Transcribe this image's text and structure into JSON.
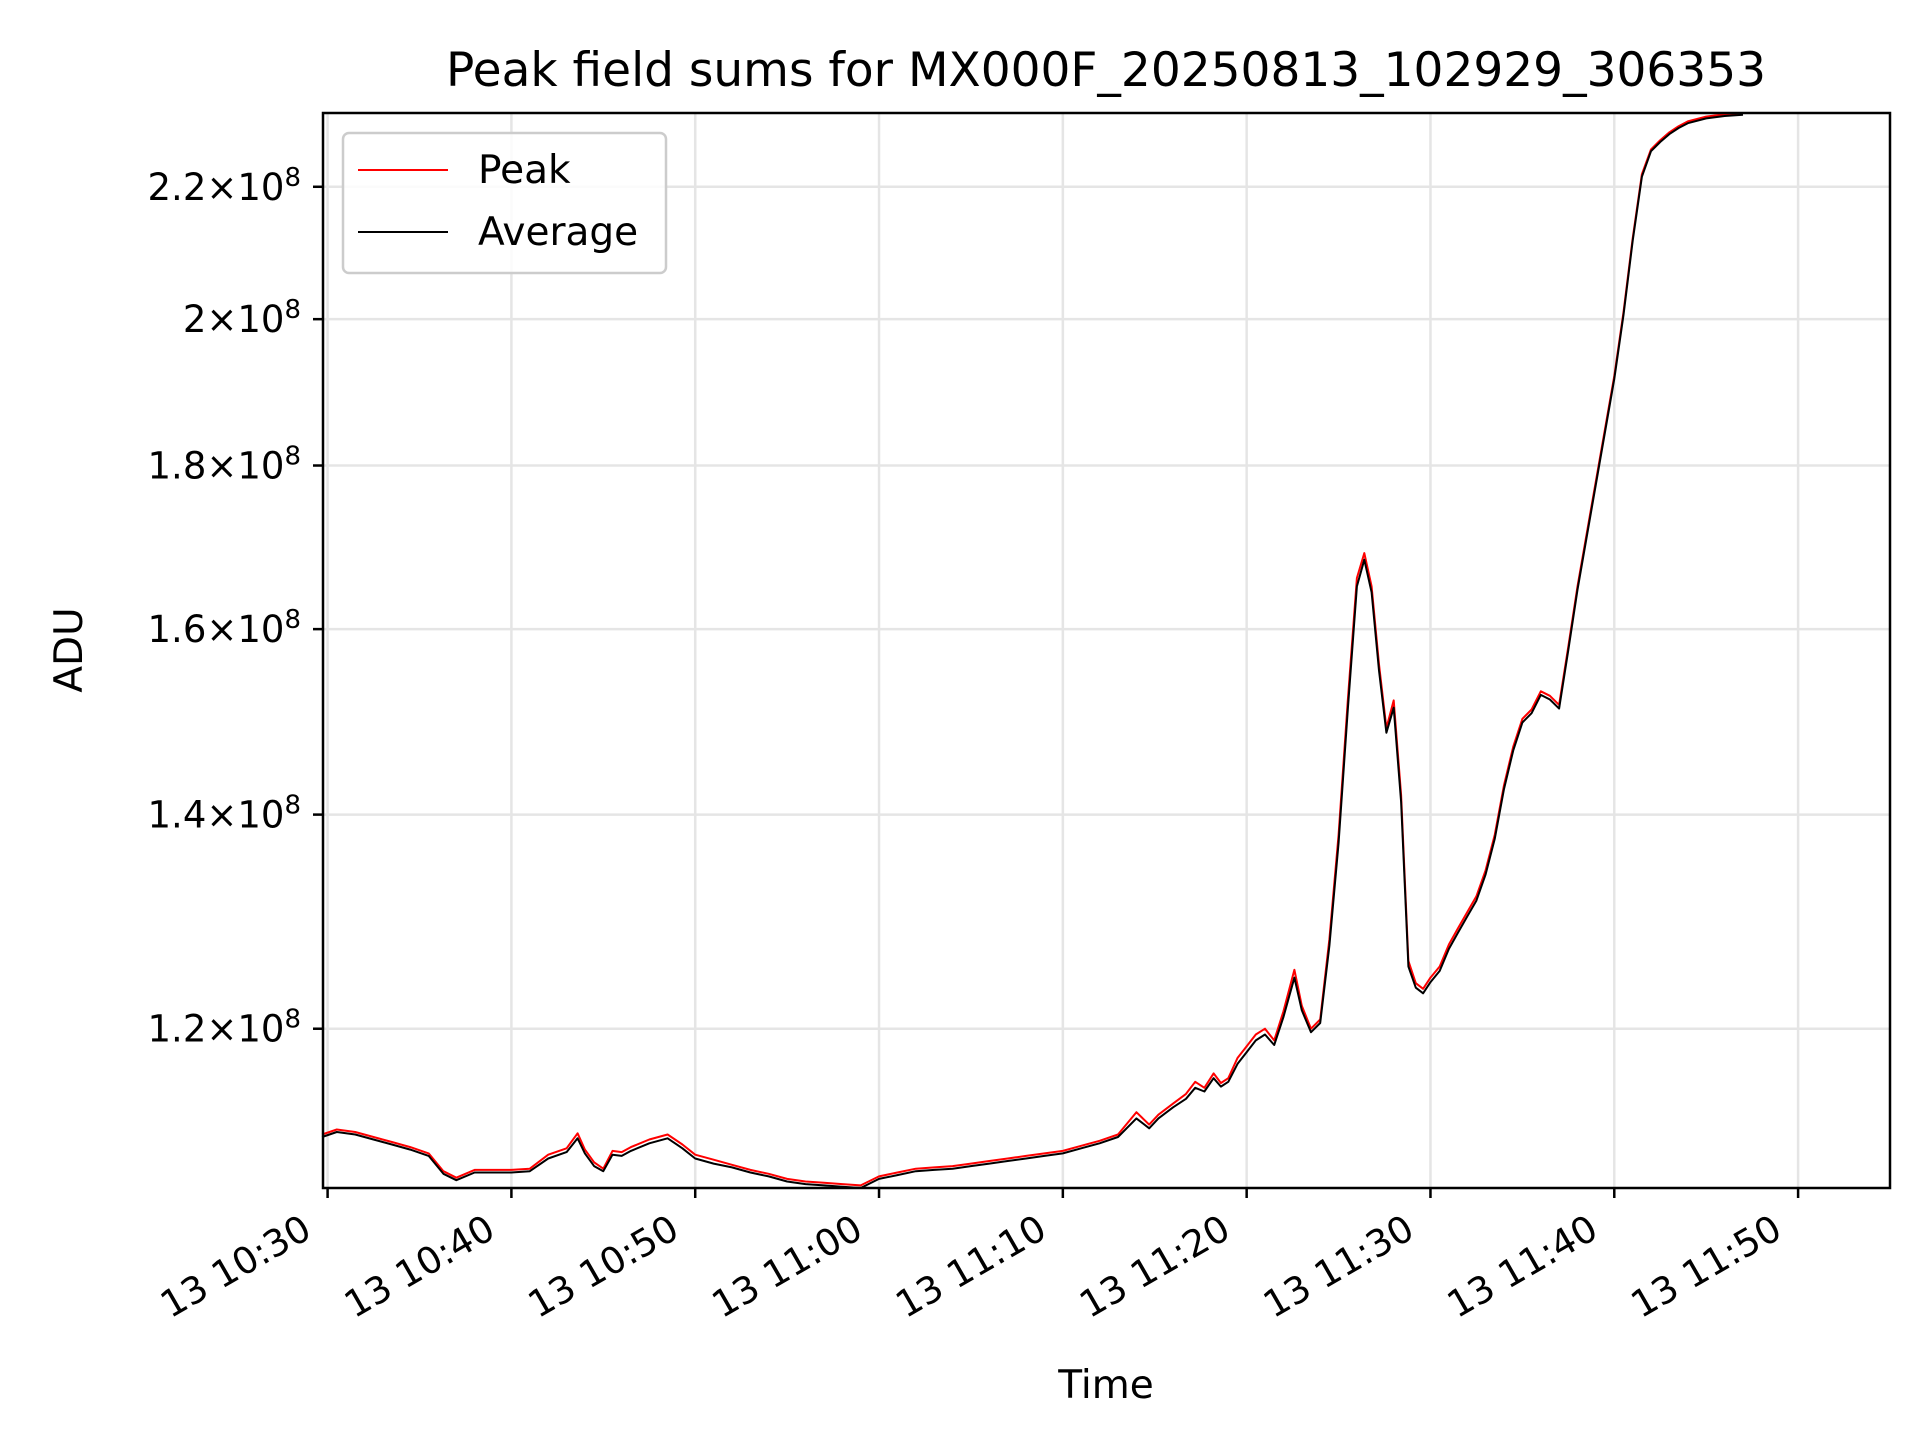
{
  "chart_data": {
    "type": "line",
    "title": "Peak field sums for MX000F_20250813_102929_306353",
    "xlabel": "Time",
    "ylabel": "ADU",
    "y_scale": "log",
    "xlim": [
      "13 10:29:45",
      "13 11:55:00"
    ],
    "ylim": [
      107000000,
      232000000
    ],
    "x_tick_labels": [
      "13 10:30",
      "13 10:40",
      "13 10:50",
      "13 11:00",
      "13 11:10",
      "13 11:20",
      "13 11:30",
      "13 11:40",
      "13 11:50"
    ],
    "x_tick_minutes": [
      30,
      40,
      50,
      60,
      70,
      80,
      90,
      100,
      110
    ],
    "y_tick_labels": [
      {
        "mant": "1.2",
        "exp": "8",
        "value": 120000000
      },
      {
        "mant": "1.4",
        "exp": "8",
        "value": 140000000
      },
      {
        "mant": "1.6",
        "exp": "8",
        "value": 160000000
      },
      {
        "mant": "1.8",
        "exp": "8",
        "value": 180000000
      },
      {
        "mant": "2",
        "exp": "8",
        "value": 200000000
      },
      {
        "mant": "2.2",
        "exp": "8",
        "value": 220000000
      }
    ],
    "grid": true,
    "legend_position": "top-left",
    "series": [
      {
        "name": "Peak",
        "color": "#ff0000",
        "x_minutes": [
          29.7,
          30.5,
          31.5,
          32.5,
          33.5,
          34.5,
          35.5,
          36.3,
          37.0,
          38.0,
          39.0,
          40.0,
          41.0,
          42.0,
          43.0,
          43.6,
          44.0,
          44.5,
          45.0,
          45.5,
          46.0,
          46.5,
          47.5,
          48.5,
          49.3,
          50.0,
          51.0,
          52.0,
          53.0,
          54.0,
          55.0,
          56.0,
          57.0,
          58.0,
          59.0,
          60.0,
          61.0,
          62.0,
          63.0,
          64.0,
          65.0,
          66.0,
          67.0,
          68.0,
          69.0,
          70.0,
          71.0,
          72.0,
          73.0,
          74.0,
          74.7,
          75.2,
          76.0,
          76.7,
          77.2,
          77.7,
          78.2,
          78.6,
          79.0,
          79.5,
          80.0,
          80.5,
          81.0,
          81.5,
          82.0,
          82.6,
          83.0,
          83.5,
          84.0,
          84.5,
          85.0,
          85.5,
          86.0,
          86.4,
          86.8,
          87.2,
          87.6,
          88.0,
          88.4,
          88.8,
          89.2,
          89.6,
          90.0,
          90.5,
          91.0,
          91.5,
          92.0,
          92.5,
          93.0,
          93.5,
          94.0,
          94.5,
          95.0,
          95.5,
          96.0,
          96.5,
          97.0,
          97.5,
          98.0,
          99.0,
          100.0,
          100.5,
          101.0,
          101.5,
          102.0,
          102.5,
          103.0,
          103.5,
          104.0,
          105.0,
          106.0,
          107.0
        ],
        "values": [
          111200000,
          111600000,
          111400000,
          111000000,
          110600000,
          110200000,
          109700000,
          108300000,
          107800000,
          108400000,
          108400000,
          108400000,
          108500000,
          109600000,
          110100000,
          111300000,
          110000000,
          109000000,
          108500000,
          109900000,
          109800000,
          110200000,
          110800000,
          111200000,
          110400000,
          109600000,
          109200000,
          108800000,
          108400000,
          108100000,
          107700000,
          107500000,
          107400000,
          107300000,
          107200000,
          107900000,
          108200000,
          108500000,
          108600000,
          108700000,
          108900000,
          109100000,
          109300000,
          109500000,
          109700000,
          109900000,
          110300000,
          110700000,
          111200000,
          113000000,
          112000000,
          112800000,
          113700000,
          114500000,
          115500000,
          115000000,
          116200000,
          115400000,
          115800000,
          117500000,
          118500000,
          119500000,
          120000000,
          119000000,
          121500000,
          125200000,
          122000000,
          120000000,
          120800000,
          128000000,
          138000000,
          152000000,
          166000000,
          169000000,
          165000000,
          156000000,
          149000000,
          152000000,
          142000000,
          126000000,
          124000000,
          123500000,
          124500000,
          125500000,
          127500000,
          129000000,
          130500000,
          132000000,
          134500000,
          138000000,
          143000000,
          147000000,
          150000000,
          151000000,
          153000000,
          152500000,
          151500000,
          158000000,
          165000000,
          178000000,
          192000000,
          201000000,
          212000000,
          222000000,
          226000000,
          227500000,
          228800000,
          229800000,
          230600000,
          231400000,
          231800000,
          232000000
        ]
      },
      {
        "name": "Average",
        "color": "#000000",
        "x_minutes": [
          29.7,
          30.5,
          31.5,
          32.5,
          33.5,
          34.5,
          35.5,
          36.3,
          37.0,
          38.0,
          39.0,
          40.0,
          41.0,
          42.0,
          43.0,
          43.6,
          44.0,
          44.5,
          45.0,
          45.5,
          46.0,
          46.5,
          47.5,
          48.5,
          49.3,
          50.0,
          51.0,
          52.0,
          53.0,
          54.0,
          55.0,
          56.0,
          57.0,
          58.0,
          59.0,
          60.0,
          61.0,
          62.0,
          63.0,
          64.0,
          65.0,
          66.0,
          67.0,
          68.0,
          69.0,
          70.0,
          71.0,
          72.0,
          73.0,
          74.0,
          74.7,
          75.2,
          76.0,
          76.7,
          77.2,
          77.7,
          78.2,
          78.6,
          79.0,
          79.5,
          80.0,
          80.5,
          81.0,
          81.5,
          82.0,
          82.6,
          83.0,
          83.5,
          84.0,
          84.5,
          85.0,
          85.5,
          86.0,
          86.4,
          86.8,
          87.2,
          87.6,
          88.0,
          88.4,
          88.8,
          89.2,
          89.6,
          90.0,
          90.5,
          91.0,
          91.5,
          92.0,
          92.5,
          93.0,
          93.5,
          94.0,
          94.5,
          95.0,
          95.5,
          96.0,
          96.5,
          97.0,
          97.5,
          98.0,
          99.0,
          100.0,
          100.5,
          101.0,
          101.5,
          102.0,
          102.5,
          103.0,
          103.5,
          104.0,
          105.0,
          106.0,
          107.0
        ],
        "values": [
          111000000,
          111400000,
          111200000,
          110800000,
          110400000,
          110000000,
          109500000,
          108100000,
          107600000,
          108200000,
          108200000,
          108200000,
          108300000,
          109300000,
          109800000,
          110900000,
          109700000,
          108700000,
          108300000,
          109600000,
          109500000,
          109900000,
          110500000,
          110900000,
          110100000,
          109300000,
          108900000,
          108600000,
          108200000,
          107900000,
          107500000,
          107300000,
          107200000,
          107100000,
          107000000,
          107700000,
          108000000,
          108300000,
          108400000,
          108500000,
          108700000,
          108900000,
          109100000,
          109300000,
          109500000,
          109700000,
          110100000,
          110500000,
          111000000,
          112500000,
          111700000,
          112500000,
          113400000,
          114100000,
          115000000,
          114700000,
          115800000,
          115100000,
          115500000,
          117000000,
          118000000,
          119000000,
          119500000,
          118600000,
          121000000,
          124500000,
          121600000,
          119700000,
          120500000,
          127400000,
          137200000,
          151000000,
          165000000,
          168200000,
          164300000,
          155300000,
          148500000,
          151200000,
          141300000,
          125500000,
          123600000,
          123100000,
          124100000,
          125100000,
          127100000,
          128600000,
          130100000,
          131600000,
          134100000,
          137600000,
          142600000,
          146600000,
          149600000,
          150600000,
          152600000,
          152100000,
          151100000,
          157600000,
          164600000,
          177600000,
          191600000,
          200600000,
          211600000,
          221600000,
          225700000,
          227200000,
          228500000,
          229500000,
          230300000,
          231100000,
          231500000,
          231700000
        ]
      }
    ]
  }
}
